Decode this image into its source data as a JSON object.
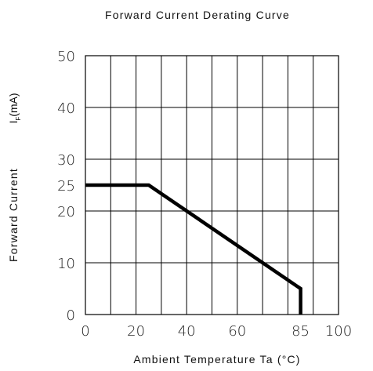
{
  "chart_data": {
    "type": "line",
    "title": "Forward Current Derating Curve",
    "xlabel": "Ambient Temperature Ta (°C)",
    "ylabel": "Forward Current",
    "ylabel_unit": {
      "symbol": "I",
      "subscript": "F",
      "unit": "(mA)"
    },
    "xlim": [
      0,
      100
    ],
    "ylim": [
      0,
      50
    ],
    "grid": true,
    "x_ticks": [
      {
        "value": 0,
        "label": "0"
      },
      {
        "value": 20,
        "label": "20"
      },
      {
        "value": 40,
        "label": "40"
      },
      {
        "value": 60,
        "label": "60"
      },
      {
        "value": 85,
        "label": "85"
      },
      {
        "value": 100,
        "label": "100"
      }
    ],
    "y_ticks": [
      {
        "value": 0,
        "label": "0"
      },
      {
        "value": 10,
        "label": "10"
      },
      {
        "value": 20,
        "label": "20"
      },
      {
        "value": 25,
        "label": "25"
      },
      {
        "value": 30,
        "label": "30"
      },
      {
        "value": 40,
        "label": "40"
      },
      {
        "value": 50,
        "label": "50"
      }
    ],
    "x_gridlines": [
      0,
      10,
      20,
      30,
      40,
      50,
      60,
      70,
      80,
      90,
      100
    ],
    "y_gridlines": [
      0,
      10,
      20,
      30,
      40,
      50
    ],
    "series": [
      {
        "color": "#000000",
        "points": [
          {
            "x": 0,
            "y": 25
          },
          {
            "x": 25,
            "y": 25
          },
          {
            "x": 85,
            "y": 5
          },
          {
            "x": 85,
            "y": 0
          }
        ]
      }
    ]
  }
}
